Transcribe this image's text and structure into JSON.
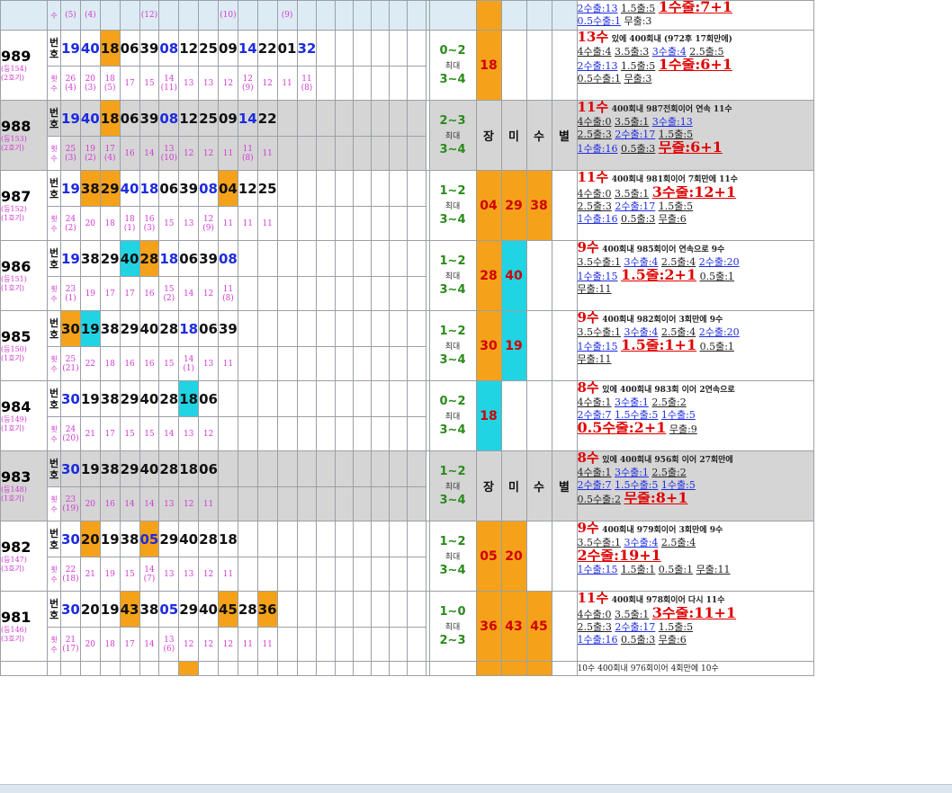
{
  "header": {
    "label": "수",
    "counts": [
      "(5)",
      "(4)",
      "",
      "",
      "(12)",
      "",
      "",
      "",
      "(10)",
      "",
      "",
      "(9)"
    ],
    "stats": [
      "2수출:13",
      "1.5출:5",
      "1수출:7+1",
      "0.5수출:1",
      "무출:3"
    ]
  },
  "rows": [
    {
      "round": "989",
      "sub1": "(등154)",
      "sub2": "(2호기)",
      "num_label": "번호",
      "cnt_label": "횟수",
      "nums": [
        "19",
        "40",
        "18",
        "06",
        "39",
        "08",
        "12",
        "25",
        "09",
        "14",
        "22",
        "01",
        "32"
      ],
      "blue": [
        0,
        1,
        5,
        9,
        12
      ],
      "orange": [
        2
      ],
      "cyan": [],
      "cnts": [
        [
          "26",
          "(4)"
        ],
        [
          "20",
          "(3)"
        ],
        [
          "18",
          "(5)"
        ],
        [
          "17",
          ""
        ],
        [
          "15",
          ""
        ],
        [
          "14",
          "(11)"
        ],
        [
          "13",
          ""
        ],
        [
          "13",
          ""
        ],
        [
          "12",
          ""
        ],
        [
          "12",
          "(9)"
        ],
        [
          "12",
          ""
        ],
        [
          "11",
          ""
        ],
        [
          "11",
          "(8)"
        ]
      ],
      "range": [
        "0∼2",
        "최대",
        "3∼4"
      ],
      "hl": [
        "18"
      ],
      "hl_colors": [
        "orange"
      ],
      "stats": [
        [
          "13수",
          "있에 400회내 (972후 17회만에)"
        ],
        [
          "4수출:4",
          "3.5출:3",
          "3수출:4",
          "2.5출:5"
        ],
        [
          "2수출:13",
          "1.5출:5",
          "1수출:6+1"
        ],
        [
          "0.5수출:1",
          "무출:3"
        ]
      ]
    },
    {
      "round": "988",
      "sub1": "(등153)",
      "sub2": "(2호기)",
      "num_label": "번호",
      "cnt_label": "횟수",
      "gray": true,
      "nums": [
        "19",
        "40",
        "18",
        "06",
        "39",
        "08",
        "12",
        "25",
        "09",
        "14",
        "22"
      ],
      "blue": [
        0,
        1,
        5,
        9
      ],
      "orange": [
        2
      ],
      "cyan": [],
      "cnts": [
        [
          "25",
          "(3)"
        ],
        [
          "19",
          "(2)"
        ],
        [
          "17",
          "(4)"
        ],
        [
          "16",
          ""
        ],
        [
          "14",
          ""
        ],
        [
          "13",
          "(10)"
        ],
        [
          "12",
          ""
        ],
        [
          "12",
          ""
        ],
        [
          "11",
          ""
        ],
        [
          "11",
          "(8)"
        ],
        [
          "11",
          ""
        ]
      ],
      "range": [
        "2∼3",
        "최대",
        "3∼4"
      ],
      "chars": [
        "장",
        "미",
        "수",
        "별"
      ],
      "stats": [
        [
          "11수",
          "400회내 987전회이어 연속 11수"
        ],
        [
          "4수출:0",
          "3.5출:1",
          "3수출:13"
        ],
        [
          "2.5출:3",
          "2수출:17",
          "1.5출:5"
        ],
        [
          "1수출:16",
          "0.5출:3",
          "무출:6+1"
        ]
      ]
    },
    {
      "round": "987",
      "sub1": "(등152)",
      "sub2": "(1호기)",
      "num_label": "번호",
      "cnt_label": "횟수",
      "nums": [
        "19",
        "38",
        "29",
        "40",
        "18",
        "06",
        "39",
        "08",
        "04",
        "12",
        "25"
      ],
      "blue": [
        0,
        3,
        4,
        7
      ],
      "orange": [
        1,
        2,
        8
      ],
      "cyan": [],
      "cnts": [
        [
          "24",
          "(2)"
        ],
        [
          "20",
          ""
        ],
        [
          "18",
          ""
        ],
        [
          "18",
          "(1)"
        ],
        [
          "16",
          "(3)"
        ],
        [
          "15",
          ""
        ],
        [
          "13",
          ""
        ],
        [
          "12",
          "(9)"
        ],
        [
          "11",
          ""
        ],
        [
          "11",
          ""
        ],
        [
          "11",
          ""
        ]
      ],
      "range": [
        "1∼2",
        "최대",
        "3∼4"
      ],
      "hl": [
        "04",
        "29",
        "38"
      ],
      "hl_colors": [
        "orange",
        "orange",
        "orange"
      ],
      "stats": [
        [
          "11수",
          "400회내 981회이어 7회만에 11수"
        ],
        [
          "4수출:0",
          "3.5출:1",
          "3수출:12+1"
        ],
        [
          "2.5출:3",
          "2수출:17",
          "1.5출:5"
        ],
        [
          "1수출:16",
          "0.5출:3",
          "무출:6"
        ]
      ]
    },
    {
      "round": "986",
      "sub1": "(등151)",
      "sub2": "(1호기)",
      "num_label": "번호",
      "cnt_label": "횟수",
      "nums": [
        "19",
        "38",
        "29",
        "40",
        "28",
        "18",
        "06",
        "39",
        "08"
      ],
      "blue": [
        0,
        5,
        8
      ],
      "orange": [
        4
      ],
      "cyan": [
        3
      ],
      "cnts": [
        [
          "23",
          "(1)"
        ],
        [
          "19",
          ""
        ],
        [
          "17",
          ""
        ],
        [
          "17",
          ""
        ],
        [
          "16",
          ""
        ],
        [
          "15",
          "(2)"
        ],
        [
          "14",
          ""
        ],
        [
          "12",
          ""
        ],
        [
          "11",
          "(8)"
        ]
      ],
      "range": [
        "1∼2",
        "최대",
        "3∼4"
      ],
      "hl": [
        "28",
        "40"
      ],
      "hl_colors": [
        "orange",
        "cyan"
      ],
      "stats": [
        [
          "9수",
          "400회내 985회이어 연속으로 9수"
        ],
        [
          "3.5수출:1",
          "3수출:4",
          "2.5출:4",
          "2수출:20"
        ],
        [
          "1수출:15",
          "1.5출:2+1",
          "0.5출:1"
        ],
        [
          "무출:11"
        ]
      ]
    },
    {
      "round": "985",
      "sub1": "(등150)",
      "sub2": "(1호기)",
      "num_label": "번호",
      "cnt_label": "횟수",
      "nums": [
        "30",
        "19",
        "38",
        "29",
        "40",
        "28",
        "18",
        "06",
        "39"
      ],
      "blue": [
        6
      ],
      "orange": [
        0
      ],
      "cyan": [
        1
      ],
      "cnts": [
        [
          "25",
          "(21)"
        ],
        [
          "22",
          ""
        ],
        [
          "18",
          ""
        ],
        [
          "16",
          ""
        ],
        [
          "16",
          ""
        ],
        [
          "15",
          ""
        ],
        [
          "14",
          "(1)"
        ],
        [
          "13",
          ""
        ],
        [
          "11",
          ""
        ]
      ],
      "range": [
        "1∼2",
        "최대",
        "3∼4"
      ],
      "hl": [
        "30",
        "19"
      ],
      "hl_colors": [
        "orange",
        "cyan"
      ],
      "stats": [
        [
          "9수",
          "400회내 982회이어 3회만에 9수"
        ],
        [
          "3.5수출:1",
          "3수출:4",
          "2.5출:4",
          "2수출:20"
        ],
        [
          "1수출:15",
          "1.5출:1+1",
          "0.5출:1"
        ],
        [
          "무출:11"
        ]
      ]
    },
    {
      "round": "984",
      "sub1": "(등149)",
      "sub2": "(1호기)",
      "num_label": "번호",
      "cnt_label": "횟수",
      "nums": [
        "30",
        "19",
        "38",
        "29",
        "40",
        "28",
        "18",
        "06"
      ],
      "blue": [
        0
      ],
      "orange": [],
      "cyan": [
        6
      ],
      "cnts": [
        [
          "24",
          "(20)"
        ],
        [
          "21",
          ""
        ],
        [
          "17",
          ""
        ],
        [
          "15",
          ""
        ],
        [
          "15",
          ""
        ],
        [
          "14",
          ""
        ],
        [
          "13",
          ""
        ],
        [
          "12",
          ""
        ]
      ],
      "range": [
        "0∼2",
        "최대",
        "3∼4"
      ],
      "hl": [
        "18"
      ],
      "hl_colors": [
        "cyan"
      ],
      "stats": [
        [
          "8수",
          "있에 400회내 983회 이어 2연속으로"
        ],
        [
          "4수출:1",
          "3수출:1",
          "2.5출:2"
        ],
        [
          "2수출:7",
          "1.5수출:5",
          "1수출:5"
        ],
        [
          "0.5수출:2+1",
          "무출:9"
        ]
      ]
    },
    {
      "round": "983",
      "sub1": "(등148)",
      "sub2": "(1호기)",
      "num_label": "번호",
      "cnt_label": "횟수",
      "gray": true,
      "nums": [
        "30",
        "19",
        "38",
        "29",
        "40",
        "28",
        "18",
        "06"
      ],
      "blue": [
        0
      ],
      "orange": [],
      "cyan": [],
      "cnts": [
        [
          "23",
          "(19)"
        ],
        [
          "20",
          ""
        ],
        [
          "16",
          ""
        ],
        [
          "14",
          ""
        ],
        [
          "14",
          ""
        ],
        [
          "13",
          ""
        ],
        [
          "12",
          ""
        ],
        [
          "11",
          ""
        ]
      ],
      "range": [
        "1∼2",
        "최대",
        "3∼4"
      ],
      "chars": [
        "장",
        "미",
        "수",
        "별"
      ],
      "stats": [
        [
          "8수",
          "있에 400회내 956회 이어 27회만에"
        ],
        [
          "4수출:1",
          "3수출:1",
          "2.5출:2"
        ],
        [
          "2수출:7",
          "1.5수출:5",
          "1수출:5"
        ],
        [
          "0.5수출:2",
          "무출:8+1"
        ]
      ]
    },
    {
      "round": "982",
      "sub1": "(등147)",
      "sub2": "(3호기)",
      "num_label": "번호",
      "cnt_label": "횟수",
      "nums": [
        "30",
        "20",
        "19",
        "38",
        "05",
        "29",
        "40",
        "28",
        "18"
      ],
      "blue": [
        0,
        4
      ],
      "orange": [
        1,
        4
      ],
      "cyan": [],
      "cnts": [
        [
          "22",
          "(18)"
        ],
        [
          "21",
          ""
        ],
        [
          "19",
          ""
        ],
        [
          "15",
          ""
        ],
        [
          "14",
          "(7)"
        ],
        [
          "13",
          ""
        ],
        [
          "13",
          ""
        ],
        [
          "12",
          ""
        ],
        [
          "11",
          ""
        ]
      ],
      "range": [
        "1∼2",
        "최대",
        "3∼4"
      ],
      "hl": [
        "05",
        "20"
      ],
      "hl_colors": [
        "orange",
        "orange"
      ],
      "stats": [
        [
          "9수",
          "400회내 979회이어 3회만에 9수"
        ],
        [
          "3.5수출:1",
          "3수출:4",
          "2.5출:4"
        ],
        [
          "2수출:19+1"
        ],
        [
          "1수출:15",
          "1.5출:1",
          "0.5출:1",
          "무출:11"
        ]
      ]
    },
    {
      "round": "981",
      "sub1": "(등146)",
      "sub2": "(3호기)",
      "num_label": "번호",
      "cnt_label": "횟수",
      "nums": [
        "30",
        "20",
        "19",
        "43",
        "38",
        "05",
        "29",
        "40",
        "45",
        "28",
        "36"
      ],
      "blue": [
        0,
        5
      ],
      "orange": [
        3,
        8,
        10
      ],
      "cyan": [],
      "cnts": [
        [
          "21",
          "(17)"
        ],
        [
          "20",
          ""
        ],
        [
          "18",
          ""
        ],
        [
          "17",
          ""
        ],
        [
          "14",
          ""
        ],
        [
          "13",
          "(6)"
        ],
        [
          "12",
          ""
        ],
        [
          "12",
          ""
        ],
        [
          "12",
          ""
        ],
        [
          "11",
          ""
        ],
        [
          "11",
          ""
        ]
      ],
      "range": [
        "1∼0",
        "최대",
        "2∼3"
      ],
      "hl": [
        "36",
        "43",
        "45"
      ],
      "hl_colors": [
        "orange",
        "orange",
        "orange"
      ],
      "stats": [
        [
          "11수",
          "400회내 978회이어 다시 11수"
        ],
        [
          "4수출:0",
          "3.5출:1",
          "3수출:11+1"
        ],
        [
          "2.5출:3",
          "2수출:17",
          "1.5출:5"
        ],
        [
          "1수출:16",
          "0.5출:3",
          "무출:6"
        ]
      ]
    }
  ],
  "next_row": {
    "stats": "10수 400회내 976회이어 4회만에 10수"
  }
}
